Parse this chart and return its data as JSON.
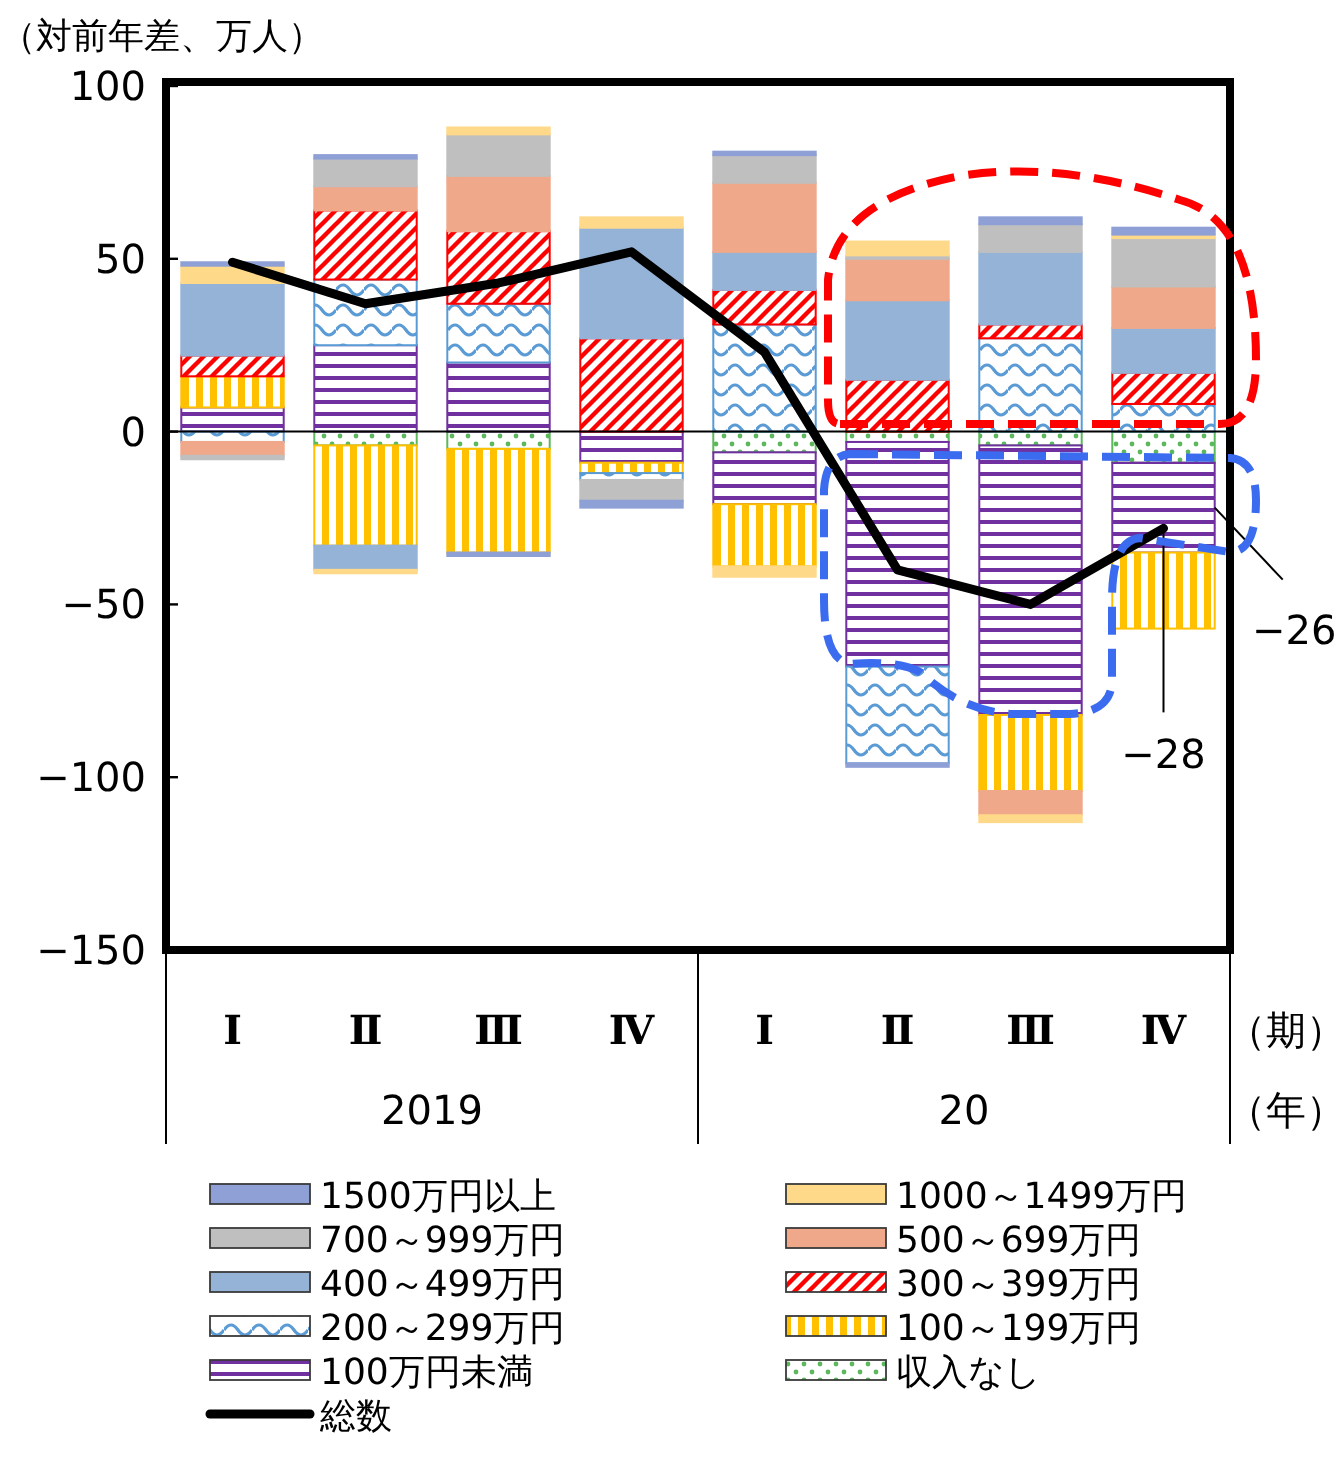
{
  "chart_data": {
    "type": "bar",
    "stacked": true,
    "ylabel": "（対前年差、万人）",
    "xlabel": "（期）",
    "categories": [
      "Ⅰ",
      "Ⅱ",
      "Ⅲ",
      "Ⅳ",
      "Ⅰ",
      "Ⅱ",
      "Ⅲ",
      "Ⅳ"
    ],
    "ylim": [
      -150,
      100
    ],
    "yticks": [
      {
        "value": -150,
        "label": "−150"
      },
      {
        "value": -100,
        "label": "−100"
      },
      {
        "value": -50,
        "label": "−50"
      },
      0,
      50,
      100
    ],
    "grid": false,
    "legend": "bottom",
    "ref_lines": [
      {
        "axis": "y",
        "value": 0,
        "color": "#000000"
      }
    ],
    "series": [
      {
        "name": "収入なし",
        "color": "#5cb85c",
        "values": [
          0,
          -4,
          -5,
          0,
          -6,
          -3,
          -4,
          -9
        ]
      },
      {
        "name": "100万円未満",
        "color": "#7030a0",
        "values": [
          7,
          25,
          20,
          -9,
          -15,
          -65,
          -78,
          -26
        ]
      },
      {
        "name": "100～199万円",
        "color": "#ffc000",
        "values": [
          9,
          -29,
          -30,
          -3,
          -18,
          0,
          -22,
          -22
        ]
      },
      {
        "name": "200～299万円",
        "color": "#5b9bd5",
        "values": [
          -3,
          19,
          17,
          -2,
          31,
          -28,
          27,
          8
        ]
      },
      {
        "name": "300～399万円",
        "color": "#ff0000",
        "values": [
          6,
          20,
          21,
          27,
          10,
          15,
          4,
          9
        ]
      },
      {
        "name": "400～499万円",
        "color": "#95b3d7",
        "values": [
          21,
          -7,
          0,
          32,
          11,
          23,
          21,
          13
        ]
      },
      {
        "name": "500～699万円",
        "color": "#f0a88a",
        "values": [
          -4,
          7,
          16,
          0,
          20,
          12,
          -7,
          12
        ]
      },
      {
        "name": "700～999万円",
        "color": "#bfbfbf",
        "values": [
          -1,
          8,
          12,
          -6,
          8,
          1,
          8,
          14
        ]
      },
      {
        "name": "1000～1499万円",
        "color": "#ffd98a",
        "values": [
          5,
          -1,
          2,
          3,
          -3,
          4,
          -2,
          1
        ]
      },
      {
        "name": "1500万円以上",
        "color": "#8ea0d6",
        "values": [
          1,
          1,
          -1,
          -2,
          1,
          -1,
          2,
          2
        ]
      },
      {
        "name": "総数",
        "type": "line",
        "color": "#000000",
        "values": [
          49,
          37,
          43,
          52,
          23,
          -40,
          -50,
          -28
        ]
      }
    ],
    "annotations": [
      "−26",
      {
        "text": "−28",
        "y": -28
      },
      "2019",
      "20",
      "（年）"
    ]
  }
}
